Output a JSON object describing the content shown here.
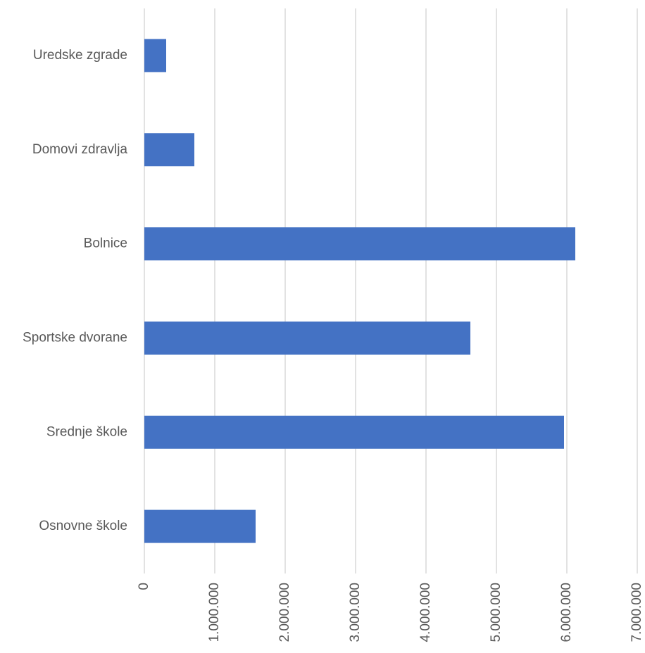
{
  "chart_data": {
    "type": "bar",
    "orientation": "horizontal",
    "categories": [
      "Osnovne škole",
      "Srednje škole",
      "Sportske dvorane",
      "Bolnice",
      "Domovi zdravlja",
      "Uredske zgrade"
    ],
    "values": [
      1580000,
      5960000,
      4630000,
      6120000,
      710000,
      310000
    ],
    "xlim": [
      0,
      7000000
    ],
    "x_ticks": [
      0,
      1000000,
      2000000,
      3000000,
      4000000,
      5000000,
      6000000,
      7000000
    ],
    "x_tick_labels": [
      "0",
      "1.000.000",
      "2.000.000",
      "3.000.000",
      "4.000.000",
      "5.000.000",
      "6.000.000",
      "7.000.000"
    ],
    "title": "",
    "xlabel": "",
    "ylabel": "",
    "grid": "vertical",
    "legend": "none",
    "bar_color": "#4472c4",
    "grid_color": "#d9d9d9",
    "text_color": "#595959"
  }
}
